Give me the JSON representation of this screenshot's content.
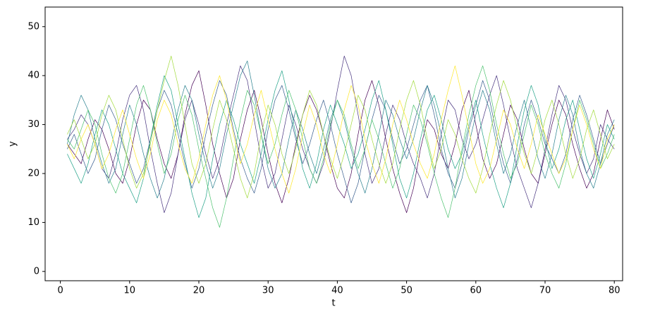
{
  "chart_data": {
    "type": "line",
    "x_label": "t",
    "y_label": "y",
    "x": [
      1,
      2,
      3,
      4,
      5,
      6,
      7,
      8,
      9,
      10,
      11,
      12,
      13,
      14,
      15,
      16,
      17,
      18,
      19,
      20,
      21,
      22,
      23,
      24,
      25,
      26,
      27,
      28,
      29,
      30,
      31,
      32,
      33,
      34,
      35,
      36,
      37,
      38,
      39,
      40,
      41,
      42,
      43,
      44,
      45,
      46,
      47,
      48,
      49,
      50,
      51,
      52,
      53,
      54,
      55,
      56,
      57,
      58,
      59,
      60,
      61,
      62,
      63,
      64,
      65,
      66,
      67,
      68,
      69,
      70,
      71,
      72,
      73,
      74,
      75,
      76,
      77,
      78,
      79,
      80
    ],
    "xlim": [
      -2.2,
      81.2
    ],
    "xticks": [
      0,
      10,
      20,
      30,
      40,
      50,
      60,
      70,
      80
    ],
    "ylim": [
      -1.9,
      54
    ],
    "yticks": [
      0,
      10,
      20,
      30,
      40,
      50
    ],
    "series": [
      {
        "color": "#440154",
        "values": [
          26,
          24,
          22,
          27,
          31,
          29,
          25,
          20,
          18,
          23,
          30,
          35,
          33,
          27,
          22,
          19,
          24,
          32,
          38,
          41,
          34,
          26,
          20,
          15,
          19,
          27,
          33,
          37,
          31,
          24,
          18,
          14,
          19,
          26,
          32,
          36,
          33,
          28,
          22,
          17,
          15,
          20,
          28,
          35,
          39,
          34,
          27,
          21,
          16,
          12,
          17,
          25,
          31,
          29,
          24,
          21,
          26,
          33,
          37,
          30,
          23,
          19,
          22,
          28,
          34,
          31,
          25,
          20,
          18,
          24,
          30,
          35,
          32,
          26,
          21,
          17,
          20,
          27,
          33,
          29
        ]
      },
      {
        "color": "#46327e",
        "values": [
          27,
          29,
          32,
          30,
          26,
          21,
          19,
          24,
          31,
          36,
          38,
          33,
          25,
          18,
          12,
          16,
          24,
          31,
          35,
          30,
          24,
          19,
          23,
          30,
          36,
          42,
          39,
          31,
          23,
          17,
          20,
          27,
          34,
          30,
          25,
          21,
          18,
          22,
          29,
          37,
          44,
          40,
          32,
          24,
          18,
          21,
          28,
          34,
          31,
          26,
          22,
          19,
          15,
          20,
          28,
          35,
          33,
          27,
          23,
          26,
          31,
          36,
          40,
          34,
          27,
          21,
          17,
          13,
          18,
          25,
          32,
          38,
          35,
          29,
          24,
          20,
          23,
          30,
          27,
          25
        ]
      },
      {
        "color": "#365c8d",
        "values": [
          25,
          28,
          24,
          20,
          23,
          29,
          34,
          31,
          26,
          22,
          18,
          21,
          27,
          33,
          37,
          34,
          28,
          22,
          17,
          21,
          28,
          34,
          39,
          36,
          29,
          23,
          19,
          16,
          21,
          29,
          35,
          38,
          33,
          27,
          22,
          26,
          31,
          35,
          30,
          24,
          19,
          14,
          18,
          25,
          31,
          36,
          33,
          27,
          22,
          25,
          30,
          35,
          38,
          32,
          25,
          20,
          17,
          22,
          29,
          34,
          39,
          35,
          28,
          22,
          18,
          23,
          30,
          35,
          31,
          26,
          23,
          20,
          24,
          31,
          36,
          32,
          27,
          22,
          26,
          30
        ]
      },
      {
        "color": "#277f8e",
        "values": [
          26,
          32,
          36,
          33,
          27,
          22,
          18,
          21,
          28,
          34,
          30,
          24,
          19,
          15,
          19,
          26,
          33,
          38,
          35,
          28,
          22,
          17,
          21,
          28,
          34,
          40,
          43,
          36,
          28,
          21,
          17,
          20,
          27,
          33,
          29,
          24,
          20,
          25,
          31,
          35,
          31,
          25,
          20,
          16,
          21,
          28,
          35,
          32,
          27,
          23,
          27,
          33,
          38,
          34,
          28,
          21,
          15,
          19,
          26,
          32,
          37,
          33,
          26,
          20,
          24,
          30,
          35,
          29,
          23,
          19,
          24,
          31,
          36,
          32,
          25,
          20,
          17,
          22,
          28,
          31
        ]
      },
      {
        "color": "#1fa187",
        "values": [
          24,
          21,
          18,
          22,
          28,
          33,
          30,
          25,
          20,
          17,
          14,
          19,
          27,
          34,
          40,
          37,
          30,
          23,
          16,
          11,
          15,
          23,
          30,
          35,
          31,
          26,
          22,
          18,
          24,
          31,
          37,
          41,
          35,
          28,
          21,
          17,
          22,
          29,
          34,
          30,
          26,
          21,
          24,
          29,
          35,
          39,
          33,
          26,
          19,
          15,
          20,
          27,
          33,
          36,
          31,
          25,
          21,
          24,
          30,
          35,
          28,
          22,
          17,
          13,
          18,
          26,
          33,
          38,
          34,
          27,
          21,
          25,
          31,
          35,
          29,
          23,
          19,
          24,
          30,
          27
        ]
      },
      {
        "color": "#4ac16d",
        "values": [
          27,
          25,
          29,
          33,
          30,
          24,
          19,
          16,
          20,
          27,
          34,
          38,
          33,
          26,
          20,
          24,
          31,
          36,
          32,
          25,
          19,
          13,
          9,
          15,
          23,
          31,
          37,
          34,
          28,
          22,
          26,
          32,
          37,
          33,
          27,
          21,
          18,
          23,
          30,
          35,
          32,
          26,
          21,
          25,
          31,
          27,
          22,
          17,
          21,
          28,
          34,
          31,
          26,
          20,
          15,
          11,
          17,
          25,
          32,
          38,
          42,
          37,
          30,
          24,
          19,
          22,
          28,
          34,
          30,
          24,
          20,
          17,
          22,
          29,
          35,
          31,
          26,
          21,
          24,
          28
        ]
      },
      {
        "color": "#a0da39",
        "values": [
          28,
          31,
          27,
          23,
          26,
          32,
          36,
          33,
          27,
          21,
          17,
          20,
          26,
          33,
          39,
          44,
          38,
          30,
          22,
          18,
          22,
          29,
          35,
          31,
          25,
          19,
          15,
          20,
          28,
          34,
          30,
          24,
          20,
          25,
          32,
          37,
          34,
          28,
          23,
          19,
          24,
          30,
          36,
          33,
          27,
          22,
          18,
          22,
          29,
          35,
          39,
          34,
          27,
          21,
          25,
          31,
          28,
          23,
          19,
          16,
          21,
          28,
          34,
          39,
          35,
          29,
          24,
          20,
          25,
          31,
          35,
          30,
          24,
          19,
          23,
          29,
          33,
          28,
          23,
          26
        ]
      },
      {
        "color": "#fde725",
        "values": [
          26,
          23,
          27,
          30,
          26,
          21,
          24,
          29,
          33,
          28,
          23,
          19,
          24,
          31,
          35,
          32,
          26,
          21,
          18,
          23,
          30,
          36,
          40,
          35,
          28,
          22,
          26,
          32,
          37,
          31,
          25,
          20,
          16,
          21,
          28,
          34,
          30,
          24,
          20,
          26,
          33,
          38,
          34,
          27,
          22,
          18,
          23,
          30,
          35,
          31,
          26,
          22,
          19,
          24,
          31,
          37,
          42,
          36,
          29,
          22,
          18,
          21,
          27,
          33,
          30,
          25,
          21,
          26,
          32,
          28,
          24,
          20,
          23,
          29,
          34,
          30,
          25,
          21,
          27,
          30
        ]
      }
    ]
  }
}
